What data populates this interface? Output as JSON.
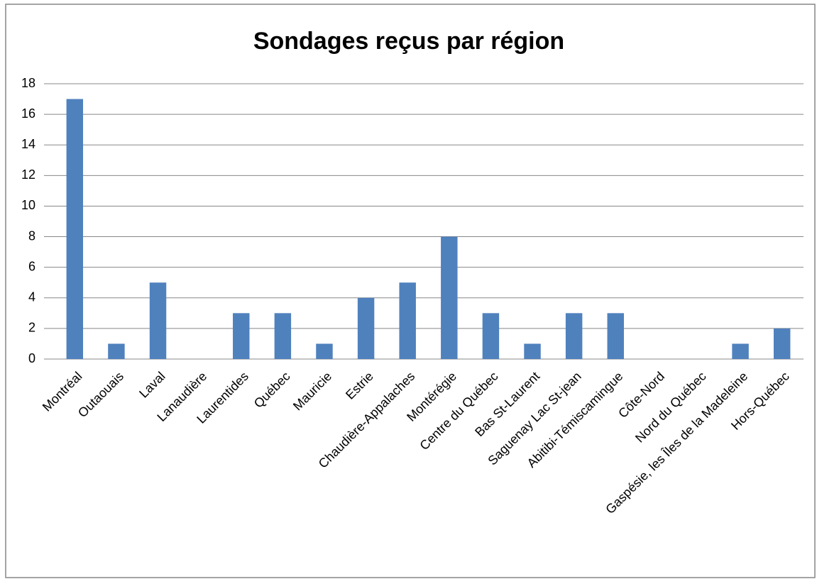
{
  "chart_data": {
    "type": "bar",
    "title": "Sondages reçus par région",
    "categories": [
      "Montréal",
      "Outaouais",
      "Laval",
      "Lanaudière",
      "Laurentides",
      "Québec",
      "Mauricie",
      "Estrie",
      "Chaudière-Appalaches",
      "Montérégie",
      "Centre du Québec",
      "Bas St-Laurent",
      "Saguenay Lac St-jean",
      "Abitibi-Témiscamingue",
      "Côte-Nord",
      "Nord du Québec",
      "Gaspésie, les Îles de la Madeleine",
      "Hors-Québec"
    ],
    "values": [
      17,
      1,
      5,
      0,
      3,
      3,
      1,
      4,
      5,
      8,
      3,
      1,
      3,
      3,
      0,
      0,
      1,
      2
    ],
    "color": "#4f81bd",
    "ylim": [
      0,
      18
    ],
    "yticks": [
      0,
      2,
      4,
      6,
      8,
      10,
      12,
      14,
      16,
      18
    ],
    "grid": true
  }
}
